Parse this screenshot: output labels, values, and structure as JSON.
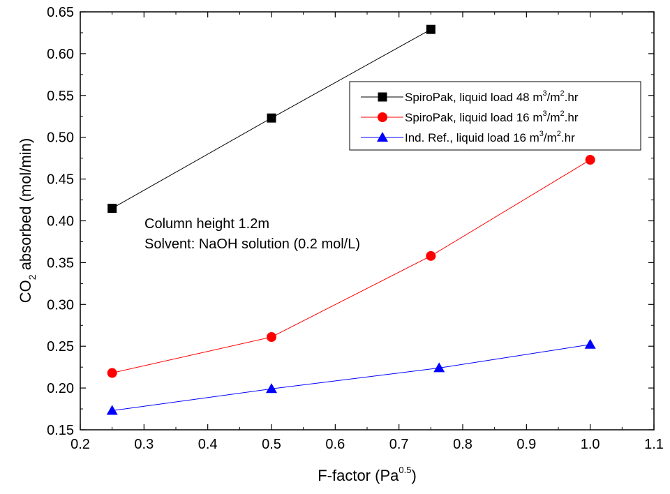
{
  "chart_data": {
    "type": "line",
    "xlabel": "F-factor (Pa",
    "xlabel_sup": "0.5",
    "xlabel_end": ")",
    "ylabel_main": "CO",
    "ylabel_sub": "2",
    "ylabel_rest": " absorbed (mol/min)",
    "xlim": [
      0.2,
      1.1
    ],
    "ylim": [
      0.15,
      0.65
    ],
    "xticks": [
      "0.2",
      "0.3",
      "0.4",
      "0.5",
      "0.6",
      "0.7",
      "0.8",
      "0.9",
      "1.0",
      "1.1"
    ],
    "yticks": [
      "0.15",
      "0.20",
      "0.25",
      "0.30",
      "0.35",
      "0.40",
      "0.45",
      "0.50",
      "0.55",
      "0.60",
      "0.65"
    ],
    "grid": false,
    "legend_position": "top-right",
    "annotations": [
      "Column height 1.2m",
      "Solvent: NaOH solution (0.2 mol/L)"
    ],
    "series": [
      {
        "name": "SpiroPak, liquid load 48 m3/m2.hr",
        "label_parts": [
          "SpiroPak, liquid load 48 m",
          "3",
          "/m",
          "2",
          ".hr"
        ],
        "color": "#000000",
        "marker": "square",
        "x": [
          0.25,
          0.5,
          0.75
        ],
        "y": [
          0.415,
          0.523,
          0.629
        ]
      },
      {
        "name": "SpiroPak, liquid load 16 m3/m2.hr",
        "label_parts": [
          "SpiroPak, liquid load 16 m",
          "3",
          "/m",
          "2",
          ".hr"
        ],
        "color": "#ff0000",
        "marker": "circle",
        "x": [
          0.25,
          0.5,
          0.75,
          1.0
        ],
        "y": [
          0.218,
          0.261,
          0.358,
          0.473
        ]
      },
      {
        "name": "Ind. Ref., liquid load 16 m3/m2.hr",
        "label_parts": [
          "Ind. Ref.,  liquid load 16 m",
          "3",
          "/m",
          "2",
          ".hr"
        ],
        "color": "#0000ff",
        "marker": "triangle",
        "x": [
          0.25,
          0.5,
          0.763,
          1.0
        ],
        "y": [
          0.173,
          0.199,
          0.224,
          0.252
        ]
      }
    ]
  }
}
